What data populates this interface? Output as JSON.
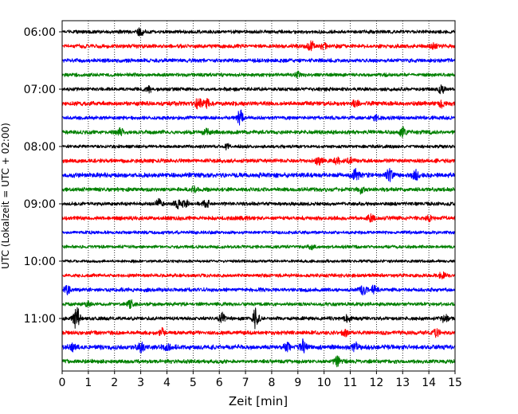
{
  "chart_data": {
    "type": "line",
    "title": "",
    "xlabel": "Zeit  [min]",
    "ylabel": "UTC (Lokalzeit = UTC + 02:00)",
    "xlim": [
      0,
      15
    ],
    "x_ticks": [
      "0",
      "1",
      "2",
      "3",
      "4",
      "5",
      "6",
      "7",
      "8",
      "9",
      "10",
      "11",
      "12",
      "13",
      "14",
      "15"
    ],
    "y_ticks": [
      "06:00",
      "07:00",
      "08:00",
      "09:00",
      "10:00",
      "11:00"
    ],
    "start_hour": "06:00",
    "trace_minutes": 15,
    "grid": {
      "vertical_dotted": true,
      "horizontal": false
    },
    "colors_cycle": [
      "#000000",
      "#ff0000",
      "#0000ff",
      "#008000"
    ],
    "series": [
      {
        "start": "06:00",
        "color": "#000000",
        "amp": 2.0,
        "events": [
          [
            3.0,
            4.5
          ]
        ]
      },
      {
        "start": "06:15",
        "color": "#ff0000",
        "amp": 2.2,
        "events": [
          [
            9.5,
            5.5
          ],
          [
            10.0,
            3.5
          ],
          [
            14.2,
            3.0
          ]
        ]
      },
      {
        "start": "06:30",
        "color": "#0000ff",
        "amp": 2.2,
        "events": []
      },
      {
        "start": "06:45",
        "color": "#008000",
        "amp": 2.0,
        "events": [
          [
            9.0,
            3.0
          ]
        ]
      },
      {
        "start": "07:00",
        "color": "#000000",
        "amp": 2.0,
        "events": [
          [
            14.5,
            6.0
          ],
          [
            3.3,
            3.0
          ]
        ]
      },
      {
        "start": "07:15",
        "color": "#ff0000",
        "amp": 2.4,
        "events": [
          [
            5.2,
            6.0
          ],
          [
            5.5,
            5.0
          ],
          [
            11.2,
            4.0
          ],
          [
            14.5,
            4.0
          ]
        ]
      },
      {
        "start": "07:30",
        "color": "#0000ff",
        "amp": 2.0,
        "events": [
          [
            6.8,
            9.0
          ],
          [
            12.0,
            3.0
          ]
        ]
      },
      {
        "start": "07:45",
        "color": "#008000",
        "amp": 2.2,
        "events": [
          [
            2.2,
            4.0
          ],
          [
            5.5,
            4.0
          ],
          [
            13.0,
            6.0
          ]
        ]
      },
      {
        "start": "08:00",
        "color": "#000000",
        "amp": 1.8,
        "events": [
          [
            6.3,
            3.5
          ]
        ]
      },
      {
        "start": "08:15",
        "color": "#ff0000",
        "amp": 2.2,
        "events": [
          [
            9.8,
            4.0
          ],
          [
            10.5,
            3.5
          ],
          [
            11.0,
            3.0
          ]
        ]
      },
      {
        "start": "08:30",
        "color": "#0000ff",
        "amp": 2.6,
        "events": [
          [
            11.2,
            6.5
          ],
          [
            12.5,
            6.5
          ],
          [
            13.5,
            5.0
          ]
        ]
      },
      {
        "start": "08:45",
        "color": "#008000",
        "amp": 2.2,
        "events": [
          [
            11.4,
            4.0
          ],
          [
            5.0,
            3.0
          ]
        ]
      },
      {
        "start": "09:00",
        "color": "#000000",
        "amp": 2.0,
        "events": [
          [
            3.7,
            5.0
          ],
          [
            4.4,
            5.0
          ],
          [
            4.7,
            4.0
          ],
          [
            5.5,
            5.5
          ]
        ]
      },
      {
        "start": "09:15",
        "color": "#ff0000",
        "amp": 2.2,
        "events": [
          [
            11.8,
            4.0
          ],
          [
            14.0,
            3.0
          ]
        ]
      },
      {
        "start": "09:30",
        "color": "#0000ff",
        "amp": 1.8,
        "events": []
      },
      {
        "start": "09:45",
        "color": "#008000",
        "amp": 1.8,
        "events": [
          [
            9.5,
            2.5
          ]
        ]
      },
      {
        "start": "10:00",
        "color": "#000000",
        "amp": 1.6,
        "events": []
      },
      {
        "start": "10:15",
        "color": "#ff0000",
        "amp": 2.0,
        "events": [
          [
            14.5,
            3.0
          ]
        ]
      },
      {
        "start": "10:30",
        "color": "#0000ff",
        "amp": 2.2,
        "events": [
          [
            0.2,
            5.0
          ],
          [
            11.5,
            5.0
          ],
          [
            11.9,
            4.0
          ]
        ]
      },
      {
        "start": "10:45",
        "color": "#008000",
        "amp": 2.0,
        "events": [
          [
            2.6,
            4.0
          ],
          [
            1.0,
            3.0
          ]
        ]
      },
      {
        "start": "11:00",
        "color": "#000000",
        "amp": 2.0,
        "events": [
          [
            0.55,
            14.0
          ],
          [
            7.4,
            13.0
          ],
          [
            6.1,
            6.0
          ],
          [
            10.9,
            4.0
          ],
          [
            14.6,
            5.0
          ]
        ]
      },
      {
        "start": "11:15",
        "color": "#ff0000",
        "amp": 2.2,
        "events": [
          [
            3.8,
            5.0
          ],
          [
            10.8,
            4.0
          ],
          [
            14.3,
            4.5
          ]
        ]
      },
      {
        "start": "11:30",
        "color": "#0000ff",
        "amp": 2.6,
        "events": [
          [
            3.0,
            5.0
          ],
          [
            4.0,
            4.0
          ],
          [
            9.2,
            7.5
          ],
          [
            8.6,
            4.5
          ],
          [
            11.2,
            4.0
          ],
          [
            0.4,
            3.5
          ]
        ]
      },
      {
        "start": "11:45",
        "color": "#008000",
        "amp": 2.2,
        "events": [
          [
            10.5,
            5.5
          ]
        ]
      }
    ]
  }
}
